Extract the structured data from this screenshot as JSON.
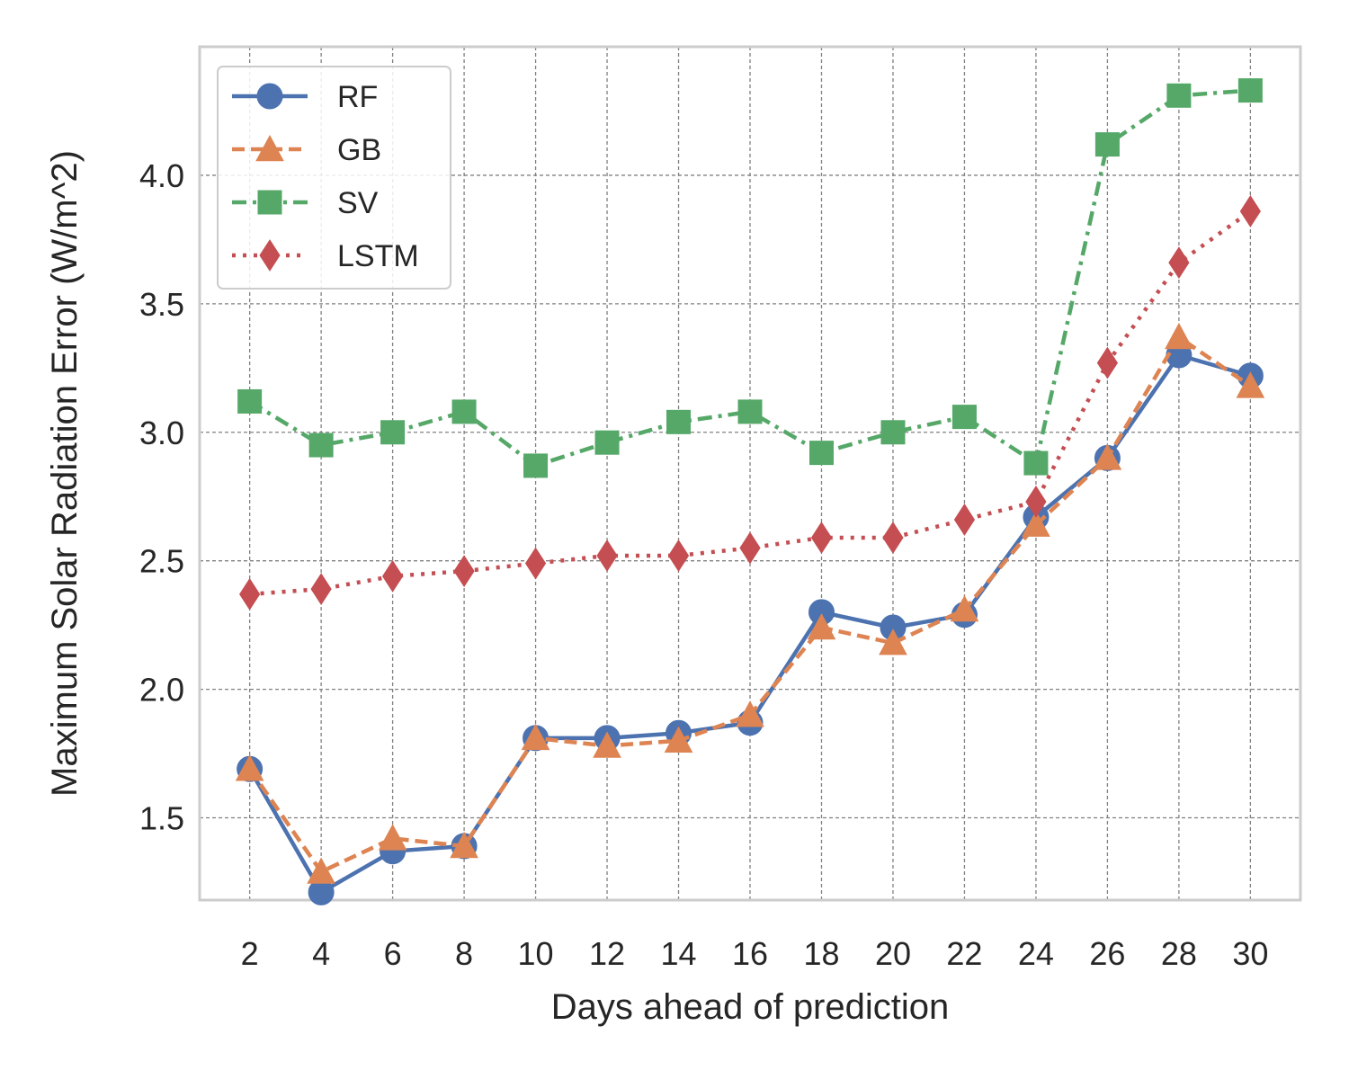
{
  "chart_data": {
    "type": "line",
    "title": "",
    "xlabel": "Days ahead of prediction",
    "ylabel": "Maximum Solar Radiation Error (W/m^2)",
    "x": [
      2,
      4,
      6,
      8,
      10,
      12,
      14,
      16,
      18,
      20,
      22,
      24,
      26,
      28,
      30
    ],
    "xlim": [
      0.6,
      31.4
    ],
    "ylim": [
      1.18,
      4.5
    ],
    "yticks": [
      1.5,
      2.0,
      2.5,
      3.0,
      3.5,
      4.0
    ],
    "ytick_labels": [
      "1.5",
      "2.0",
      "2.5",
      "3.0",
      "3.5",
      "4.0"
    ],
    "grid": true,
    "legend_position": "top-left",
    "series": [
      {
        "name": "RF",
        "color": "#4c72b0",
        "line_style": "solid",
        "marker": "circle",
        "values": [
          1.69,
          1.21,
          1.37,
          1.39,
          1.81,
          1.81,
          1.83,
          1.87,
          2.3,
          2.24,
          2.29,
          2.67,
          2.9,
          3.3,
          3.22
        ]
      },
      {
        "name": "GB",
        "color": "#dd8452",
        "line_style": "dashed",
        "marker": "triangle",
        "values": [
          1.69,
          1.29,
          1.42,
          1.39,
          1.81,
          1.78,
          1.8,
          1.9,
          2.24,
          2.18,
          2.31,
          2.64,
          2.9,
          3.37,
          3.18
        ]
      },
      {
        "name": "SV",
        "color": "#55a868",
        "line_style": "dashdot",
        "marker": "square",
        "values": [
          3.12,
          2.95,
          3.0,
          3.08,
          2.87,
          2.96,
          3.04,
          3.08,
          2.92,
          3.0,
          3.06,
          2.88,
          4.12,
          4.31,
          4.33
        ]
      },
      {
        "name": "LSTM",
        "color": "#c44e52",
        "line_style": "dotted",
        "marker": "diamond",
        "values": [
          2.37,
          2.39,
          2.44,
          2.46,
          2.49,
          2.52,
          2.52,
          2.55,
          2.59,
          2.59,
          2.66,
          2.73,
          3.27,
          3.66,
          3.86
        ]
      }
    ]
  }
}
